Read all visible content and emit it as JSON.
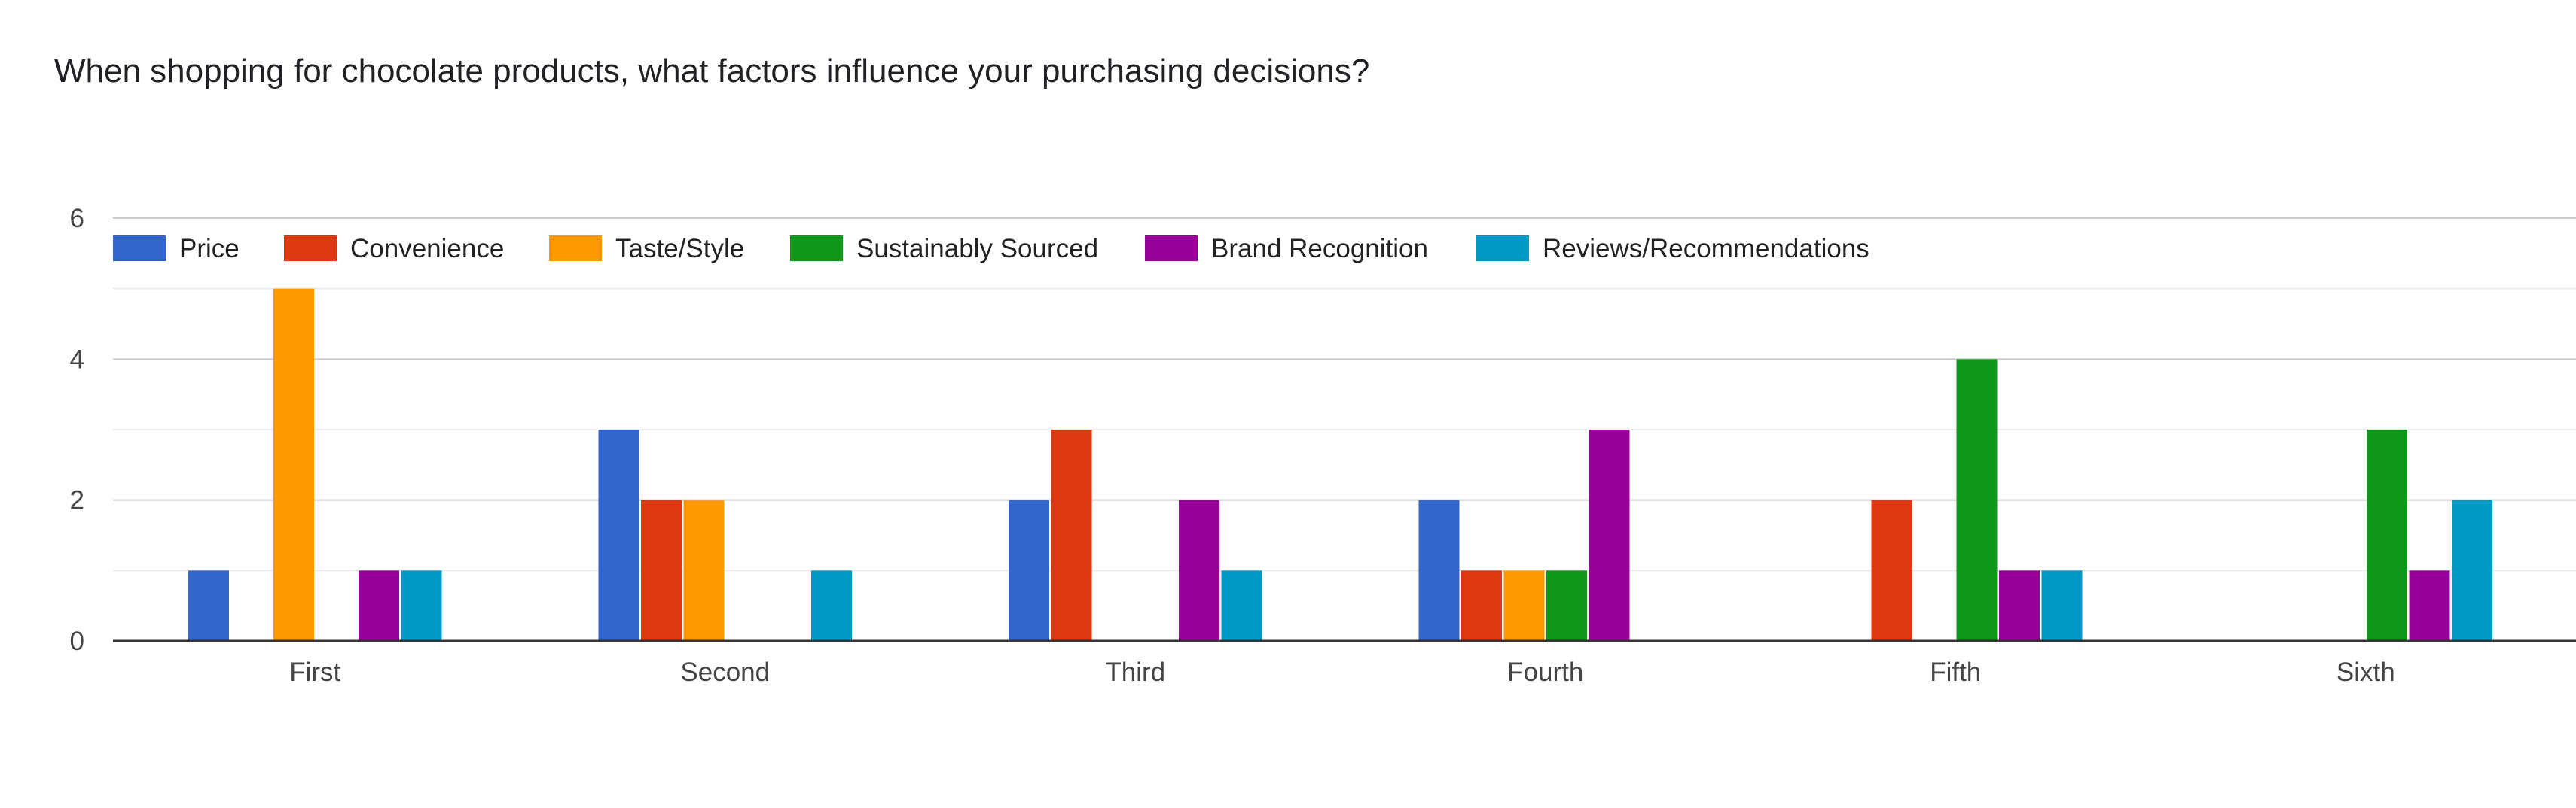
{
  "chart_data": {
    "type": "bar",
    "title": "When shopping for chocolate products, what factors influence your purchasing decisions?",
    "xlabel": "",
    "ylabel": "",
    "categories": [
      "First",
      "Second",
      "Third",
      "Fourth",
      "Fifth",
      "Sixth"
    ],
    "series": [
      {
        "name": "Price",
        "color": "#3366cc",
        "values": [
          1,
          3,
          2,
          2,
          0,
          0
        ]
      },
      {
        "name": "Convenience",
        "color": "#dc3912",
        "values": [
          0,
          2,
          3,
          1,
          2,
          0
        ]
      },
      {
        "name": "Taste/Style",
        "color": "#ff9900",
        "values": [
          5,
          2,
          0,
          1,
          0,
          0
        ]
      },
      {
        "name": "Sustainably Sourced",
        "color": "#109618",
        "values": [
          0,
          0,
          0,
          1,
          4,
          3
        ]
      },
      {
        "name": "Brand Recognition",
        "color": "#990099",
        "values": [
          1,
          0,
          2,
          3,
          1,
          1
        ]
      },
      {
        "name": "Reviews/Recommendations",
        "color": "#0099c6",
        "values": [
          1,
          1,
          1,
          0,
          1,
          2
        ]
      }
    ],
    "ylim": [
      0,
      6
    ],
    "yticks": [
      0,
      2,
      4,
      6
    ],
    "grid": true,
    "legend_position": "top-left"
  }
}
